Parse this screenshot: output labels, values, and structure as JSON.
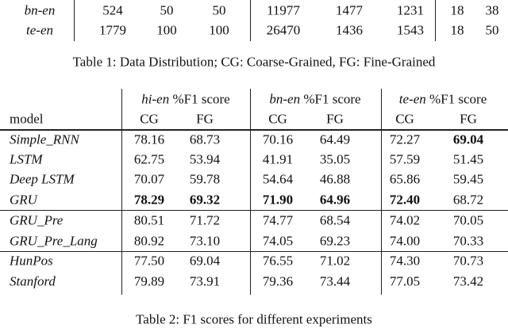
{
  "table1": {
    "rows": [
      {
        "label": "bn-en",
        "values": [
          "524",
          "50",
          "50",
          "11977",
          "1477",
          "1231",
          "18",
          "38"
        ]
      },
      {
        "label": "te-en",
        "values": [
          "1779",
          "100",
          "100",
          "26470",
          "1436",
          "1543",
          "18",
          "50"
        ]
      }
    ],
    "caption": "Table 1: Data Distribution; CG: Coarse-Grained, FG: Fine-Grained"
  },
  "table2": {
    "groups": [
      {
        "lang": "hi-en",
        "suffix": " %F1 score"
      },
      {
        "lang": "bn-en",
        "suffix": " %F1 score"
      },
      {
        "lang": "te-en",
        "suffix": " %F1 score"
      }
    ],
    "model_header": "model",
    "subheaders": [
      "CG",
      "FG",
      "CG",
      "FG",
      "CG",
      "FG"
    ],
    "rows": [
      {
        "model": "Simple_RNN",
        "values": [
          "78.16",
          "68.73",
          "70.16",
          "64.49",
          "72.27",
          "69.04"
        ],
        "bold": [
          5
        ]
      },
      {
        "model": "LSTM",
        "values": [
          "62.75",
          "53.94",
          "41.91",
          "35.05",
          "57.59",
          "51.45"
        ],
        "bold": []
      },
      {
        "model": "Deep LSTM",
        "values": [
          "70.07",
          "59.78",
          "54.64",
          "46.88",
          "65.86",
          "59.45"
        ],
        "bold": []
      },
      {
        "model": "GRU",
        "values": [
          "78.29",
          "69.32",
          "71.90",
          "64.96",
          "72.40",
          "68.72"
        ],
        "bold": [
          0,
          1,
          2,
          3,
          4
        ]
      },
      {
        "model": "GRU_Pre",
        "values": [
          "80.51",
          "71.72",
          "74.77",
          "68.54",
          "74.02",
          "70.05"
        ],
        "bold": []
      },
      {
        "model": "GRU_Pre_Lang",
        "values": [
          "80.92",
          "73.10",
          "74.05",
          "69.23",
          "74.00",
          "70.33"
        ],
        "bold": []
      },
      {
        "model": "HunPos",
        "values": [
          "77.50",
          "69.04",
          "76.55",
          "71.02",
          "74.30",
          "70.73"
        ],
        "bold": []
      },
      {
        "model": "Stanford",
        "values": [
          "79.89",
          "73.91",
          "79.36",
          "73.44",
          "77.05",
          "73.42"
        ],
        "bold": []
      }
    ],
    "caption": "Table 2: F1 scores for different experiments"
  }
}
